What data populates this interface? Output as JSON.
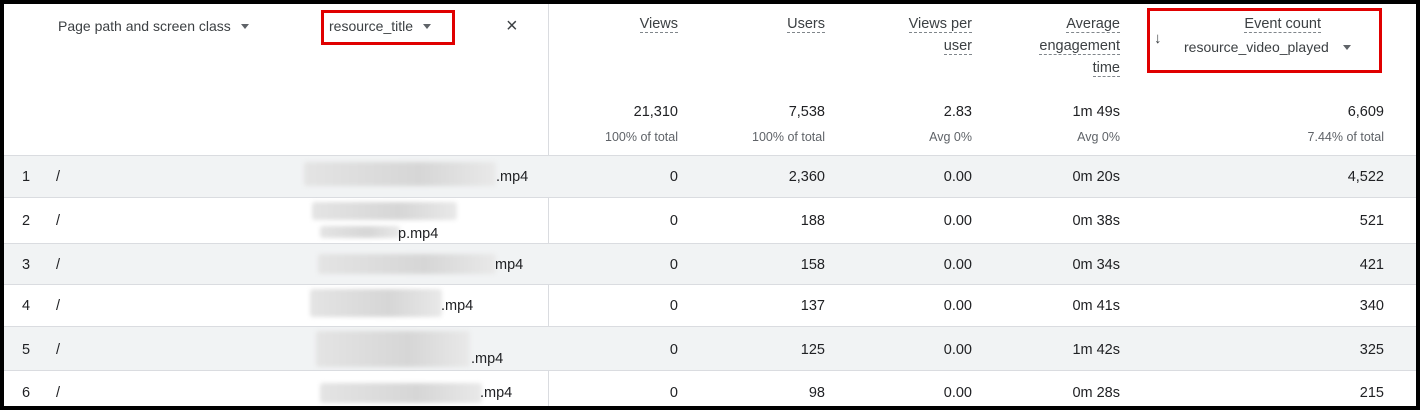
{
  "headers": {
    "dim1": "Page path and screen class",
    "dim2": "resource_title",
    "close": "×",
    "views": "Views",
    "users": "Users",
    "views_per_user_l1": "Views per",
    "views_per_user_l2": "user",
    "avg_eng_l1": "Average",
    "avg_eng_l2": "engagement",
    "avg_eng_l3": "time",
    "event_count": "Event count",
    "event_name": "resource_video_played",
    "sort_icon": "↓"
  },
  "totals": {
    "views": "21,310",
    "views_sub": "100% of total",
    "users": "7,538",
    "users_sub": "100% of total",
    "vpu": "2.83",
    "vpu_sub": "Avg 0%",
    "aet": "1m 49s",
    "aet_sub": "Avg 0%",
    "events": "6,609",
    "events_sub": "7.44% of total"
  },
  "rows": [
    {
      "idx": "1",
      "path": "/",
      "title_suffix": ".mp4",
      "views": "0",
      "users": "2,360",
      "vpu": "0.00",
      "aet": "0m 20s",
      "events": "4,522"
    },
    {
      "idx": "2",
      "path": "/",
      "title_suffix": "p.mp4",
      "views": "0",
      "users": "188",
      "vpu": "0.00",
      "aet": "0m 38s",
      "events": "521"
    },
    {
      "idx": "3",
      "path": "/",
      "title_suffix": "mp4",
      "views": "0",
      "users": "158",
      "vpu": "0.00",
      "aet": "0m 34s",
      "events": "421"
    },
    {
      "idx": "4",
      "path": "/",
      "title_suffix": ".mp4",
      "views": "0",
      "users": "137",
      "vpu": "0.00",
      "aet": "0m 41s",
      "events": "340"
    },
    {
      "idx": "5",
      "path": "/",
      "title_suffix": ".mp4",
      "views": "0",
      "users": "125",
      "vpu": "0.00",
      "aet": "1m 42s",
      "events": "325"
    },
    {
      "idx": "6",
      "path": "/",
      "title_suffix": ".mp4",
      "views": "0",
      "users": "98",
      "vpu": "0.00",
      "aet": "0m 28s",
      "events": "215"
    }
  ],
  "colors": {
    "highlight": "#e00000",
    "shade": "#f1f3f4",
    "border": "#dadce0"
  }
}
